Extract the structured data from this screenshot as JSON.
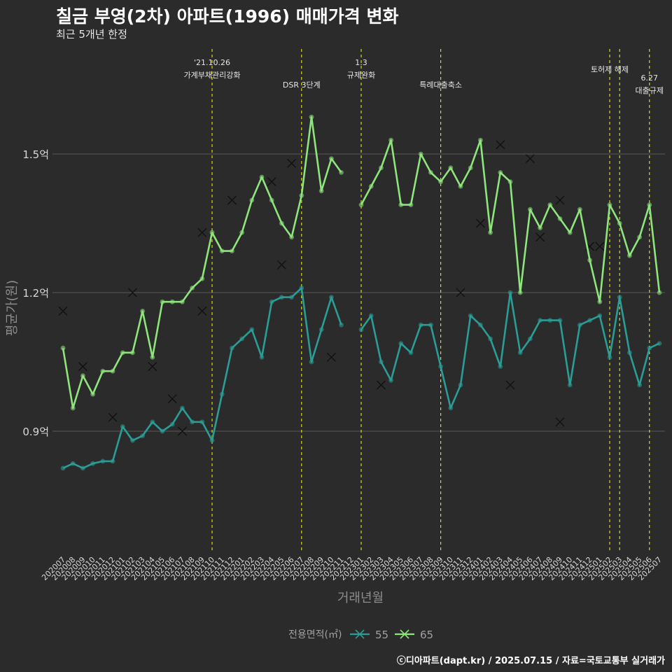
{
  "title": "칠금 부영(2차) 아파트(1996) 매매가격 변화",
  "subtitle": "최근 5개년 한정",
  "caption": "ⓒ디아파트(dapt.kr) / 2025.07.15 / 자료=국토교통부 실거래가",
  "colors": {
    "s55": "#2a9d96",
    "s65": "#8ee57c",
    "background": "#2b2b2b",
    "event_line": "#d8d62a",
    "grid": "#5a5a5a"
  },
  "chart_data": {
    "type": "line",
    "xlabel": "거래년월",
    "ylabel": "평균가(원)",
    "ylim": [
      0.62,
      1.49
    ],
    "yticks": [
      0.9,
      1.2,
      1.5
    ],
    "ytick_labels": [
      "0.9억",
      "1.2억",
      "1.5억"
    ],
    "categories": [
      "202007",
      "202008",
      "202009",
      "202010",
      "202011",
      "202012",
      "202101",
      "202102",
      "202103",
      "202104",
      "202105",
      "202106",
      "202107",
      "202108",
      "202109",
      "202110",
      "202111",
      "202112",
      "202201",
      "202202",
      "202203",
      "202204",
      "202205",
      "202206",
      "202207",
      "202208",
      "202209",
      "202210",
      "202211",
      "202212",
      "202301",
      "202302",
      "202303",
      "202304",
      "202305",
      "202306",
      "202307",
      "202308",
      "202309",
      "202310",
      "202311",
      "202312",
      "202401",
      "202402",
      "202403",
      "202404",
      "202405",
      "202406",
      "202407",
      "202408",
      "202409",
      "202410",
      "202411",
      "202412",
      "202501",
      "202502",
      "202503",
      "202504",
      "202505",
      "202506",
      "202507"
    ],
    "legend_title": "전용면적(㎡)",
    "legend_position": "bottom",
    "series": [
      {
        "name": "55",
        "color": "#2a9d96",
        "values": [
          0.82,
          0.83,
          0.82,
          0.83,
          0.835,
          0.835,
          0.91,
          0.88,
          0.89,
          0.92,
          0.9,
          0.915,
          0.95,
          0.92,
          0.92,
          0.88,
          0.98,
          1.08,
          1.1,
          1.12,
          1.06,
          1.18,
          1.19,
          1.19,
          1.21,
          1.05,
          1.12,
          1.19,
          1.13,
          null,
          1.12,
          1.15,
          1.05,
          1.01,
          1.09,
          1.07,
          1.13,
          1.13,
          1.04,
          0.95,
          1.0,
          1.15,
          1.13,
          1.1,
          1.04,
          1.2,
          1.07,
          1.1,
          1.14,
          1.14,
          1.14,
          1.0,
          1.13,
          1.14,
          1.15,
          1.06,
          1.19,
          1.07,
          1.0,
          1.08,
          1.09
        ],
        "markers": [
          {
            "x": "202205",
            "y": 1.26
          },
          {
            "x": "202210",
            "y": 1.06
          },
          {
            "x": "202303",
            "y": 1.0
          },
          {
            "x": "202409",
            "y": 0.92
          },
          {
            "x": "202412",
            "y": 1.3
          }
        ]
      },
      {
        "name": "65",
        "color": "#8ee57c",
        "values": [
          1.08,
          0.95,
          1.02,
          0.98,
          1.03,
          1.03,
          1.07,
          1.07,
          1.16,
          1.06,
          1.18,
          1.18,
          1.18,
          1.21,
          1.23,
          1.33,
          1.29,
          1.29,
          1.33,
          1.4,
          1.45,
          1.4,
          1.35,
          1.32,
          1.41,
          1.58,
          1.42,
          1.49,
          1.46,
          null,
          1.39,
          1.43,
          1.47,
          1.53,
          1.39,
          1.39,
          1.5,
          1.46,
          1.44,
          1.47,
          1.43,
          1.47,
          1.53,
          1.33,
          1.46,
          1.44,
          1.2,
          1.38,
          1.34,
          1.39,
          1.36,
          1.33,
          1.38,
          1.27,
          1.18,
          1.39,
          1.35,
          1.28,
          1.32,
          1.39,
          1.2
        ],
        "markers": [
          {
            "x": "202007",
            "y": 1.16
          },
          {
            "x": "202009",
            "y": 1.04
          },
          {
            "x": "202012",
            "y": 0.93
          },
          {
            "x": "202102",
            "y": 1.2
          },
          {
            "x": "202104",
            "y": 1.04
          },
          {
            "x": "202106",
            "y": 0.97
          },
          {
            "x": "202107",
            "y": 0.9
          },
          {
            "x": "202109",
            "y": 1.16
          },
          {
            "x": "202109",
            "y": 1.33
          },
          {
            "x": "202112",
            "y": 1.4
          },
          {
            "x": "202204",
            "y": 1.44
          },
          {
            "x": "202206",
            "y": 1.48
          },
          {
            "x": "202311",
            "y": 1.2
          },
          {
            "x": "202401",
            "y": 1.35
          },
          {
            "x": "202403",
            "y": 1.52
          },
          {
            "x": "202404",
            "y": 1.0
          },
          {
            "x": "202406",
            "y": 1.49
          },
          {
            "x": "202407",
            "y": 1.32
          },
          {
            "x": "202409",
            "y": 1.4
          },
          {
            "x": "202501",
            "y": 1.3
          }
        ]
      }
    ],
    "events": [
      {
        "x": "202110",
        "label": "'21.10.26\n가계부채관리강화",
        "label_pos": "high"
      },
      {
        "x": "202207",
        "label": "DSR 3단계",
        "label_pos": "low"
      },
      {
        "x": "202301",
        "label": "1.3\n규제완화",
        "label_pos": "high"
      },
      {
        "x": "202309",
        "label": "특례대출축소",
        "label_pos": "low"
      },
      {
        "x": "202502",
        "label": "토허제 해제",
        "label_pos": "mid"
      },
      {
        "x": "202503",
        "label": "",
        "label_pos": "mid"
      },
      {
        "x": "202506",
        "label": "6.27\n대출규제",
        "label_pos": "mid2"
      }
    ]
  }
}
